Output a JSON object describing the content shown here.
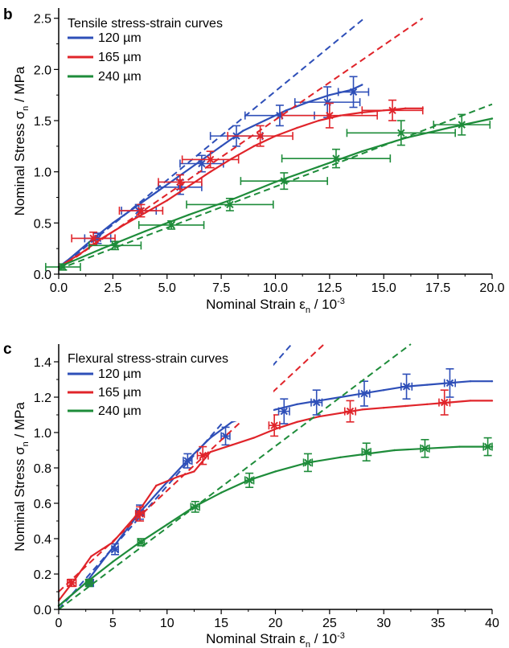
{
  "chart_data": [
    {
      "panel": "b",
      "type": "line",
      "title": "Tensile stress-strain curves",
      "xlabel": "Nominal Strain ε",
      "xlabel_sub": "n",
      "xlabel_unit": " / 10",
      "xlabel_exp": "-3",
      "ylabel": "Nominal Stress σ",
      "ylabel_sub": "n",
      "ylabel_unit": " / MPa",
      "xlim": [
        0,
        20
      ],
      "ylim": [
        0,
        2.6
      ],
      "xticks": [
        "0.0",
        "2.5",
        "5.0",
        "7.5",
        "10.0",
        "12.5",
        "15.0",
        "17.5",
        "20.0"
      ],
      "yticks": [
        "0.0",
        "0.5",
        "1.0",
        "1.5",
        "2.0",
        "2.5"
      ],
      "grid": false,
      "legend_position": "top-left",
      "series": [
        {
          "name": "120 µm",
          "color": "#2e4fb8",
          "x": [
            0,
            0.5,
            1.5,
            2.5,
            3.5,
            4.5,
            5.5,
            6.5,
            7.5,
            8.5,
            9.5,
            10.5,
            11.5,
            12.5,
            13.5,
            14.0
          ],
          "y": [
            0.07,
            0.15,
            0.33,
            0.5,
            0.65,
            0.8,
            0.95,
            1.1,
            1.25,
            1.4,
            1.5,
            1.6,
            1.68,
            1.75,
            1.8,
            1.85
          ],
          "fit_x": [
            0,
            14.1
          ],
          "fit_y": [
            0.05,
            2.5
          ],
          "error_bars": [
            {
              "x": 1.8,
              "y": 0.35,
              "xerr": 0.6,
              "yerr": 0.05
            },
            {
              "x": 3.7,
              "y": 0.62,
              "xerr": 0.8,
              "yerr": 0.06
            },
            {
              "x": 5.6,
              "y": 0.85,
              "xerr": 1.0,
              "yerr": 0.07
            },
            {
              "x": 6.6,
              "y": 1.08,
              "xerr": 1.0,
              "yerr": 0.08
            },
            {
              "x": 8.2,
              "y": 1.35,
              "xerr": 1.2,
              "yerr": 0.1
            },
            {
              "x": 10.2,
              "y": 1.55,
              "xerr": 1.6,
              "yerr": 0.1
            },
            {
              "x": 12.4,
              "y": 1.68,
              "xerr": 1.5,
              "yerr": 0.15
            },
            {
              "x": 13.6,
              "y": 1.78,
              "xerr": 0.7,
              "yerr": 0.15
            }
          ]
        },
        {
          "name": "165 µm",
          "color": "#e0242a",
          "x": [
            0,
            1,
            2,
            3,
            4,
            5,
            6,
            7,
            8,
            9,
            10,
            11,
            12,
            13,
            14,
            15,
            16,
            16.8
          ],
          "y": [
            0.07,
            0.2,
            0.35,
            0.48,
            0.6,
            0.72,
            0.86,
            1.0,
            1.13,
            1.25,
            1.35,
            1.43,
            1.5,
            1.55,
            1.58,
            1.6,
            1.62,
            1.62
          ],
          "fit_x": [
            0,
            16.8
          ],
          "fit_y": [
            0.05,
            2.5
          ],
          "error_bars": [
            {
              "x": 1.6,
              "y": 0.35,
              "xerr": 1.0,
              "yerr": 0.06
            },
            {
              "x": 3.8,
              "y": 0.62,
              "xerr": 1.0,
              "yerr": 0.06
            },
            {
              "x": 5.6,
              "y": 0.9,
              "xerr": 1.0,
              "yerr": 0.07
            },
            {
              "x": 7.0,
              "y": 1.12,
              "xerr": 1.3,
              "yerr": 0.08
            },
            {
              "x": 9.3,
              "y": 1.35,
              "xerr": 1.5,
              "yerr": 0.1
            },
            {
              "x": 12.5,
              "y": 1.55,
              "xerr": 2.2,
              "yerr": 0.12
            },
            {
              "x": 15.4,
              "y": 1.6,
              "xerr": 1.4,
              "yerr": 0.1
            }
          ]
        },
        {
          "name": "240 µm",
          "color": "#1e8c3a",
          "x": [
            0,
            2,
            4,
            6,
            8,
            10,
            12,
            14,
            16,
            18,
            20
          ],
          "y": [
            0.07,
            0.25,
            0.42,
            0.58,
            0.73,
            0.9,
            1.05,
            1.2,
            1.33,
            1.43,
            1.52
          ],
          "fit_x": [
            0,
            20
          ],
          "fit_y": [
            0.05,
            1.66
          ],
          "error_bars": [
            {
              "x": 0.2,
              "y": 0.07,
              "xerr": 0.8,
              "yerr": 0.03
            },
            {
              "x": 2.6,
              "y": 0.28,
              "xerr": 1.2,
              "yerr": 0.04
            },
            {
              "x": 5.2,
              "y": 0.48,
              "xerr": 1.5,
              "yerr": 0.04
            },
            {
              "x": 7.9,
              "y": 0.68,
              "xerr": 2.0,
              "yerr": 0.06
            },
            {
              "x": 10.4,
              "y": 0.91,
              "xerr": 2.0,
              "yerr": 0.08
            },
            {
              "x": 12.8,
              "y": 1.13,
              "xerr": 2.5,
              "yerr": 0.09
            },
            {
              "x": 15.8,
              "y": 1.38,
              "xerr": 2.5,
              "yerr": 0.12
            },
            {
              "x": 18.6,
              "y": 1.46,
              "xerr": 1.3,
              "yerr": 0.1
            }
          ]
        }
      ]
    },
    {
      "panel": "c",
      "type": "line",
      "title": "Flexural stress-strain curves",
      "xlabel": "Nominal Strain ε",
      "xlabel_sub": "n",
      "xlabel_unit": " / 10",
      "xlabel_exp": "-3",
      "ylabel": "Nominal Stress σ",
      "ylabel_sub": "n",
      "ylabel_unit": " / MPa",
      "xlim": [
        0,
        40
      ],
      "ylim": [
        0,
        1.5
      ],
      "xticks": [
        "0",
        "5",
        "10",
        "15",
        "20",
        "25",
        "30",
        "35",
        "40"
      ],
      "yticks": [
        "0.0",
        "0.2",
        "0.4",
        "0.6",
        "0.8",
        "1.0",
        "1.2",
        "1.4"
      ],
      "grid": false,
      "legend_position": "top-left",
      "series": [
        {
          "name": "120 µm",
          "color": "#2e4fb8",
          "x": [
            0,
            2.5,
            5,
            7.5,
            10,
            12,
            14,
            16,
            18,
            20,
            22,
            24,
            26,
            28,
            30,
            32,
            34,
            36,
            38,
            40
          ],
          "y": [
            0.02,
            0.15,
            0.35,
            0.55,
            0.72,
            0.85,
            0.97,
            1.06,
            1.1,
            1.13,
            1.16,
            1.18,
            1.2,
            1.22,
            1.24,
            1.26,
            1.27,
            1.28,
            1.29,
            1.29
          ],
          "fit_x": [
            0,
            21.5
          ],
          "fit_y": [
            0.0,
            1.5
          ],
          "error_bars": [
            {
              "x": 2.9,
              "y": 0.15,
              "xerr": 0.3,
              "yerr": 0.02
            },
            {
              "x": 5.2,
              "y": 0.34,
              "xerr": 0.3,
              "yerr": 0.03
            },
            {
              "x": 7.5,
              "y": 0.55,
              "xerr": 0.3,
              "yerr": 0.04
            },
            {
              "x": 11.9,
              "y": 0.84,
              "xerr": 0.4,
              "yerr": 0.04
            },
            {
              "x": 15.4,
              "y": 0.98,
              "xerr": 0.4,
              "yerr": 0.05
            },
            {
              "x": 20.8,
              "y": 1.12,
              "xerr": 0.5,
              "yerr": 0.07
            },
            {
              "x": 23.8,
              "y": 1.17,
              "xerr": 0.5,
              "yerr": 0.07
            },
            {
              "x": 28.2,
              "y": 1.22,
              "xerr": 0.5,
              "yerr": 0.07
            },
            {
              "x": 32.1,
              "y": 1.26,
              "xerr": 0.5,
              "yerr": 0.07
            },
            {
              "x": 36.1,
              "y": 1.28,
              "xerr": 0.5,
              "yerr": 0.08
            }
          ]
        },
        {
          "name": "165 µm",
          "color": "#e0242a",
          "x": [
            0,
            1.5,
            3,
            5,
            7,
            9,
            11,
            12.5,
            14,
            16,
            18,
            20,
            22,
            24,
            26,
            28,
            30,
            32,
            34,
            36,
            38,
            40
          ],
          "y": [
            0.05,
            0.17,
            0.3,
            0.38,
            0.52,
            0.7,
            0.75,
            0.78,
            0.89,
            0.93,
            0.97,
            1.02,
            1.06,
            1.09,
            1.11,
            1.13,
            1.14,
            1.15,
            1.16,
            1.17,
            1.18,
            1.18
          ],
          "fit_x": [
            0,
            24.5
          ],
          "fit_y": [
            0.1,
            1.5
          ],
          "error_bars": [
            {
              "x": 1.2,
              "y": 0.15,
              "xerr": 0.4,
              "yerr": 0.02
            },
            {
              "x": 7.5,
              "y": 0.54,
              "xerr": 0.4,
              "yerr": 0.04
            },
            {
              "x": 13.3,
              "y": 0.87,
              "xerr": 0.5,
              "yerr": 0.05
            },
            {
              "x": 19.9,
              "y": 1.04,
              "xerr": 0.5,
              "yerr": 0.06
            },
            {
              "x": 26.9,
              "y": 1.12,
              "xerr": 0.5,
              "yerr": 0.06
            },
            {
              "x": 35.6,
              "y": 1.17,
              "xerr": 0.5,
              "yerr": 0.07
            }
          ]
        },
        {
          "name": "240 µm",
          "color": "#1e8c3a",
          "x": [
            0,
            2.5,
            5,
            7.5,
            10,
            12.5,
            15,
            17.5,
            20,
            23,
            26,
            28.5,
            31,
            34,
            37,
            40
          ],
          "y": [
            0.02,
            0.15,
            0.27,
            0.38,
            0.48,
            0.58,
            0.66,
            0.73,
            0.78,
            0.83,
            0.86,
            0.88,
            0.9,
            0.91,
            0.92,
            0.92
          ],
          "fit_x": [
            0,
            32.5
          ],
          "fit_y": [
            0.0,
            1.5
          ],
          "error_bars": [
            {
              "x": 2.8,
              "y": 0.15,
              "xerr": 0.3,
              "yerr": 0.02
            },
            {
              "x": 7.6,
              "y": 0.38,
              "xerr": 0.3,
              "yerr": 0.02
            },
            {
              "x": 12.6,
              "y": 0.58,
              "xerr": 0.4,
              "yerr": 0.03
            },
            {
              "x": 17.6,
              "y": 0.73,
              "xerr": 0.4,
              "yerr": 0.04
            },
            {
              "x": 23.0,
              "y": 0.83,
              "xerr": 0.4,
              "yerr": 0.05
            },
            {
              "x": 28.4,
              "y": 0.89,
              "xerr": 0.4,
              "yerr": 0.05
            },
            {
              "x": 33.8,
              "y": 0.91,
              "xerr": 0.4,
              "yerr": 0.05
            },
            {
              "x": 39.6,
              "y": 0.92,
              "xerr": 0.4,
              "yerr": 0.05
            }
          ]
        }
      ]
    }
  ]
}
